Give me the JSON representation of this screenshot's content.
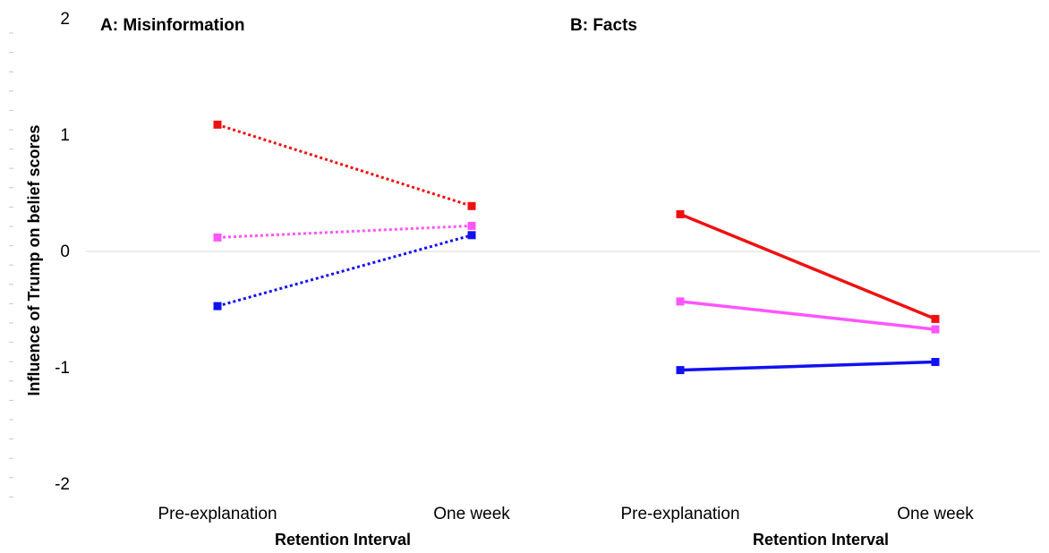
{
  "chart_data": {
    "type": "line",
    "ylabel": "Influence of Trump on belief scores",
    "ylim": [
      -2,
      2
    ],
    "yticks": [
      2,
      1,
      0,
      -1,
      -2
    ],
    "ytick_labels": [
      "2",
      "1",
      "0",
      "-1",
      "-2"
    ],
    "panels": [
      {
        "title": "A: Misinformation",
        "xlabel": "Retention Interval",
        "categories": [
          "Pre-explanation",
          "One week"
        ],
        "line_style": "dotted",
        "series": [
          {
            "color": "#ee1111",
            "values": [
              1.09,
              0.39
            ]
          },
          {
            "color": "#ff55ff",
            "values": [
              0.12,
              0.22
            ]
          },
          {
            "color": "#1111ee",
            "values": [
              -0.47,
              0.14
            ]
          }
        ]
      },
      {
        "title": "B: Facts",
        "xlabel": "Retention Interval",
        "categories": [
          "Pre-explanation",
          "One week"
        ],
        "line_style": "solid",
        "series": [
          {
            "color": "#ee1111",
            "values": [
              0.32,
              -0.58
            ]
          },
          {
            "color": "#ff55ff",
            "values": [
              -0.43,
              -0.67
            ]
          },
          {
            "color": "#1111ee",
            "values": [
              -1.02,
              -0.95
            ]
          }
        ]
      }
    ]
  }
}
